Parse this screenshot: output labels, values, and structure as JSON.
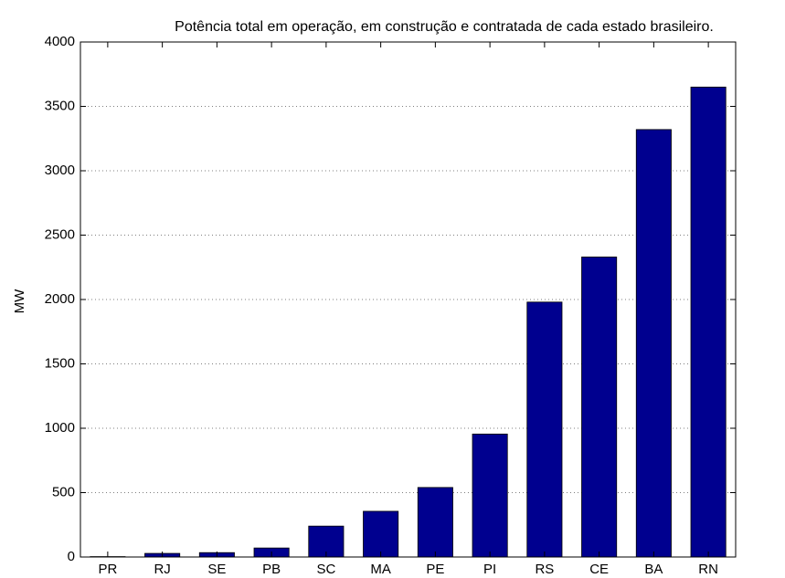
{
  "chart_data": {
    "type": "bar",
    "title": "Potência total em operação, em construção e contratada de cada estado brasileiro.",
    "ylabel": "MW",
    "categories": [
      "PR",
      "RJ",
      "SE",
      "PB",
      "SC",
      "MA",
      "PE",
      "PI",
      "RS",
      "CE",
      "BA",
      "RN"
    ],
    "values": [
      3,
      28,
      34,
      70,
      240,
      355,
      540,
      955,
      1980,
      2330,
      3320,
      3650
    ],
    "color": "#00008f",
    "ylim": [
      0,
      4000
    ],
    "yticks": [
      0,
      500,
      1000,
      1500,
      2000,
      2500,
      3000,
      3500,
      4000
    ],
    "grid": true
  }
}
